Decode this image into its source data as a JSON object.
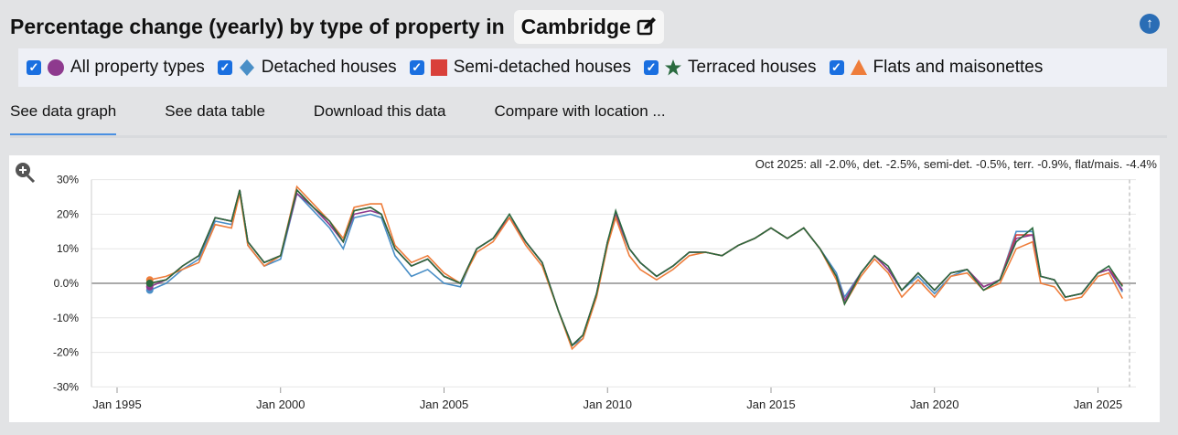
{
  "header": {
    "title": "Percentage change (yearly) by type of property in",
    "location": "Cambridge",
    "edit_icon": "edit-icon",
    "top_icon": "arrow-up-circle-icon"
  },
  "legend": [
    {
      "label": "All property types",
      "color": "#8e3a8e",
      "shape": "circle"
    },
    {
      "label": "Detached houses",
      "color": "#4a8fc7",
      "shape": "diamond"
    },
    {
      "label": "Semi-detached houses",
      "color": "#d9403a",
      "shape": "square"
    },
    {
      "label": "Terraced houses",
      "color": "#2a6a3f",
      "shape": "star"
    },
    {
      "label": "Flats and maisonettes",
      "color": "#ee7d3b",
      "shape": "triangle"
    }
  ],
  "tabs": [
    "See data graph",
    "See data table",
    "Download this data",
    "Compare with location ..."
  ],
  "zoom_icon": "zoom-in-icon",
  "chart_data": {
    "type": "line",
    "annotation": "Oct 2025: all -2.0%, det. -2.5%, semi-det. -0.5%, terr. -0.9%, flat/mais. -4.4%",
    "ylim": [
      -30,
      30
    ],
    "yticks": [
      "30%",
      "20%",
      "10%",
      "0.0%",
      "-10%",
      "-20%",
      "-30%"
    ],
    "xticks": [
      "Jan 1995",
      "Jan 2000",
      "Jan 2005",
      "Jan 2010",
      "Jan 2015",
      "Jan 2020",
      "Jan 2025"
    ],
    "grid": true,
    "x": [
      "1996-01",
      "1996-07",
      "1997-01",
      "1997-07",
      "1998-01",
      "1998-07",
      "1998-10",
      "1999-01",
      "1999-07",
      "2000-01",
      "2000-07",
      "2001-01",
      "2001-07",
      "2001-12",
      "2002-04",
      "2002-10",
      "2003-02",
      "2003-07",
      "2004-01",
      "2004-07",
      "2005-01",
      "2005-07",
      "2006-01",
      "2006-07",
      "2007-01",
      "2007-07",
      "2008-01",
      "2008-07",
      "2008-12",
      "2009-04",
      "2009-09",
      "2010-01",
      "2010-04",
      "2010-09",
      "2011-01",
      "2011-07",
      "2012-01",
      "2012-07",
      "2013-01",
      "2013-07",
      "2014-01",
      "2014-07",
      "2015-01",
      "2015-07",
      "2016-01",
      "2016-07",
      "2017-01",
      "2017-04",
      "2017-10",
      "2018-03",
      "2018-08",
      "2019-01",
      "2019-07",
      "2020-01",
      "2020-07",
      "2021-01",
      "2021-07",
      "2022-01",
      "2022-07",
      "2023-01",
      "2023-04",
      "2023-09",
      "2024-01",
      "2024-07",
      "2025-01",
      "2025-05",
      "2025-10"
    ],
    "series": [
      {
        "name": "All property types",
        "values": [
          -1,
          1,
          5,
          8,
          19,
          18,
          27,
          12,
          6,
          8,
          26,
          22,
          17,
          12,
          20,
          21,
          20,
          10,
          5,
          7,
          2,
          0,
          10,
          13,
          19,
          12,
          6,
          -8,
          -18,
          -15,
          -3,
          12,
          20,
          10,
          6,
          2,
          5,
          9,
          9,
          8,
          11,
          13,
          16,
          13,
          16,
          10,
          2,
          -5,
          3,
          8,
          4,
          -2,
          3,
          -2,
          3,
          4,
          -1,
          1,
          13,
          14,
          2,
          1,
          -4,
          -3,
          3,
          4,
          -2.0
        ]
      },
      {
        "name": "Detached houses",
        "values": [
          -2,
          0,
          4,
          7,
          18,
          17,
          27,
          11,
          5,
          7,
          26,
          21,
          16,
          10,
          19,
          20,
          19,
          8,
          2,
          4,
          0,
          -1,
          10,
          13,
          19,
          12,
          6,
          -8,
          -18,
          -16,
          -3,
          12,
          19,
          10,
          6,
          2,
          5,
          9,
          9,
          8,
          11,
          13,
          16,
          13,
          16,
          10,
          3,
          -4,
          3,
          8,
          4,
          -2,
          2,
          -3,
          2,
          4,
          -1,
          1,
          15,
          15,
          2,
          1,
          -4,
          -3,
          3,
          4,
          -2.5
        ]
      },
      {
        "name": "Semi-detached houses",
        "values": [
          0,
          1,
          5,
          8,
          19,
          18,
          27,
          12,
          6,
          8,
          27,
          22,
          17,
          12,
          21,
          22,
          20,
          10,
          5,
          7,
          2,
          0,
          10,
          13,
          19,
          12,
          6,
          -8,
          -18,
          -15,
          -3,
          12,
          20,
          10,
          6,
          2,
          5,
          9,
          9,
          8,
          11,
          13,
          16,
          13,
          16,
          10,
          2,
          -5,
          3,
          8,
          4,
          -2,
          3,
          -2,
          3,
          4,
          -1,
          1,
          14,
          14,
          2,
          1,
          -4,
          -3,
          3,
          4,
          -0.5
        ]
      },
      {
        "name": "Terraced houses",
        "values": [
          0,
          1,
          5,
          8,
          19,
          18,
          27,
          12,
          6,
          8,
          27,
          22,
          18,
          12,
          21,
          22,
          20,
          10,
          5,
          7,
          2,
          0,
          10,
          13,
          20,
          12,
          6,
          -8,
          -18,
          -15,
          -3,
          12,
          21,
          10,
          6,
          2,
          5,
          9,
          9,
          8,
          11,
          13,
          16,
          13,
          16,
          10,
          2,
          -6,
          3,
          8,
          5,
          -2,
          3,
          -2,
          3,
          4,
          -2,
          1,
          12,
          16,
          2,
          1,
          -4,
          -3,
          3,
          5,
          -0.9
        ]
      },
      {
        "name": "Flats and maisonettes",
        "values": [
          1,
          2,
          4,
          6,
          17,
          16,
          26,
          11,
          5,
          8,
          28,
          23,
          18,
          13,
          22,
          23,
          23,
          11,
          6,
          8,
          3,
          0,
          9,
          12,
          19,
          11,
          5,
          -8,
          -19,
          -16,
          -4,
          11,
          19,
          8,
          4,
          1,
          4,
          8,
          9,
          8,
          11,
          13,
          16,
          13,
          16,
          10,
          1,
          -6,
          2,
          7,
          3,
          -4,
          1,
          -4,
          2,
          3,
          -2,
          0,
          10,
          12,
          0,
          -1,
          -5,
          -4,
          2,
          3,
          -4.4
        ]
      }
    ]
  }
}
